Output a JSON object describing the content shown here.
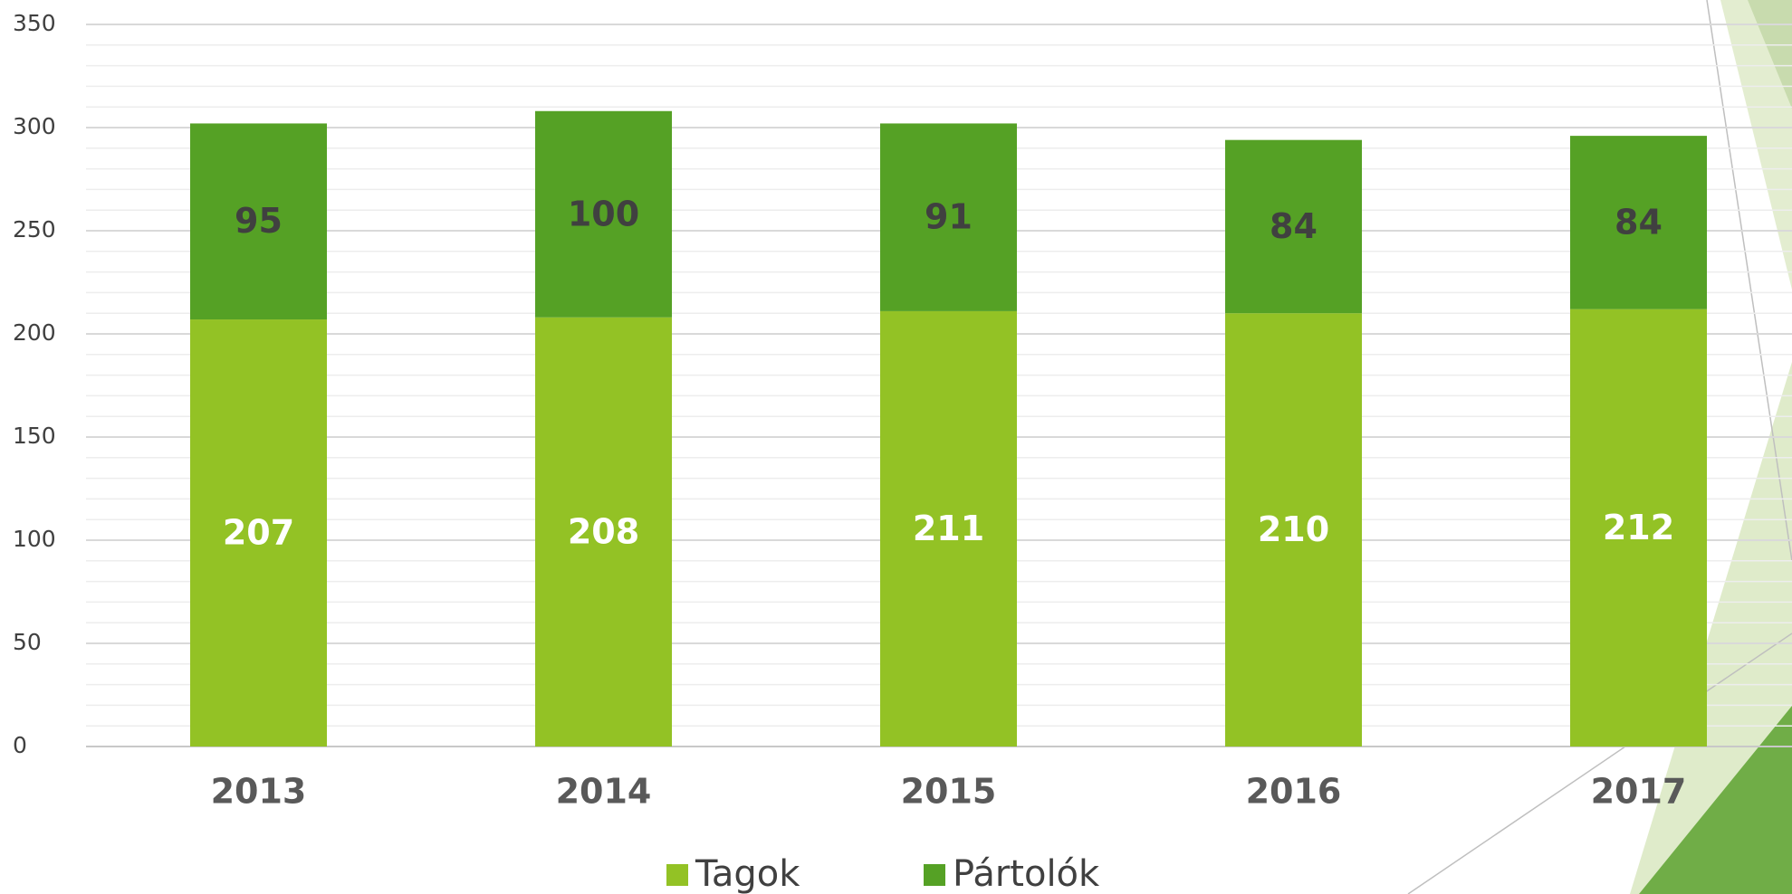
{
  "chart_data": {
    "type": "stacked_bar",
    "categories": [
      "2013",
      "2014",
      "2015",
      "2016",
      "2017"
    ],
    "series": [
      {
        "name": "Tagok",
        "color": "#93c225",
        "label_color": "#ffffff",
        "values": [
          207,
          208,
          211,
          210,
          212
        ]
      },
      {
        "name": "Pártolók",
        "color": "#55a125",
        "label_color": "#404040",
        "values": [
          95,
          100,
          91,
          84,
          84
        ]
      }
    ],
    "ylim": [
      0,
      350
    ],
    "yticks": [
      0,
      50,
      100,
      150,
      200,
      250,
      300,
      350
    ],
    "grid": true,
    "legend": "bottom"
  }
}
